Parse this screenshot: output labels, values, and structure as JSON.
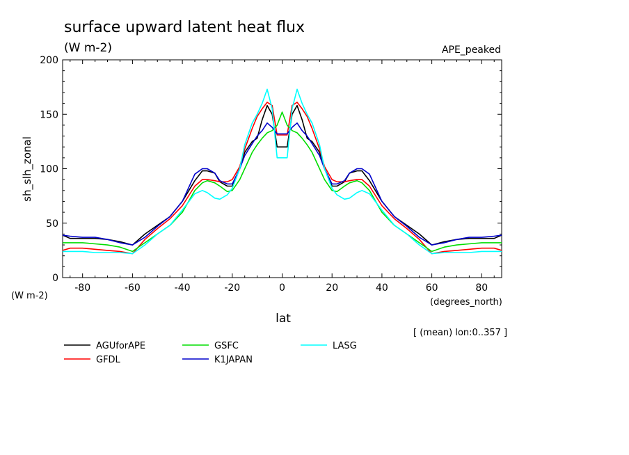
{
  "chart_data": {
    "type": "line",
    "title": "surface upward latent heat flux",
    "subtitle": "(W m-2)",
    "tag": "APE_peaked",
    "ylabel": "sh_slh_zonal",
    "yunit": "(W m-2)",
    "xlabel": "lat",
    "xunit": "(degrees_north)",
    "footnote": "[ (mean) lon:0..357 ]",
    "xlim": [
      -88,
      88
    ],
    "ylim": [
      0,
      200
    ],
    "xticks": [
      -80,
      -60,
      -40,
      -20,
      0,
      20,
      40,
      60,
      80
    ],
    "yticks": [
      0,
      50,
      100,
      150,
      200
    ],
    "legend_position": "bottom",
    "series": [
      {
        "name": "AGUforAPE",
        "color": "#000000",
        "x": [
          -88,
          -85,
          -80,
          -75,
          -70,
          -65,
          -60,
          -55,
          -50,
          -45,
          -40,
          -35,
          -32,
          -30,
          -27,
          -25,
          -22,
          -20,
          -17,
          -15,
          -12,
          -10,
          -8,
          -6,
          -4,
          -2,
          0,
          2,
          4,
          6,
          8,
          10,
          12,
          15,
          17,
          20,
          22,
          25,
          27,
          30,
          32,
          35,
          40,
          45,
          50,
          55,
          60,
          65,
          70,
          75,
          80,
          85,
          88
        ],
        "y": [
          39,
          36,
          36,
          36,
          35,
          33,
          30,
          40,
          48,
          56,
          70,
          89,
          98,
          98,
          96,
          88,
          84,
          84,
          100,
          115,
          125,
          128,
          145,
          158,
          150,
          120,
          120,
          120,
          150,
          158,
          145,
          128,
          125,
          115,
          100,
          84,
          84,
          88,
          96,
          98,
          98,
          89,
          70,
          56,
          48,
          40,
          30,
          33,
          35,
          36,
          36,
          36,
          39
        ]
      },
      {
        "name": "GFDL",
        "color": "#ff0000",
        "x": [
          -88,
          -85,
          -80,
          -75,
          -70,
          -65,
          -60,
          -55,
          -50,
          -45,
          -40,
          -35,
          -32,
          -30,
          -27,
          -25,
          -22,
          -20,
          -17,
          -15,
          -12,
          -10,
          -8,
          -6,
          -4,
          -2,
          0,
          2,
          4,
          6,
          8,
          10,
          12,
          15,
          17,
          20,
          22,
          25,
          27,
          30,
          32,
          35,
          40,
          45,
          50,
          55,
          60,
          65,
          70,
          75,
          80,
          85,
          88
        ],
        "y": [
          25,
          27,
          27,
          26,
          25,
          24,
          22,
          35,
          45,
          54,
          66,
          84,
          90,
          90,
          89,
          88,
          88,
          90,
          102,
          118,
          137,
          148,
          155,
          161,
          158,
          131,
          131,
          131,
          158,
          161,
          155,
          148,
          137,
          118,
          102,
          90,
          88,
          88,
          89,
          90,
          90,
          84,
          66,
          54,
          45,
          35,
          22,
          24,
          25,
          26,
          27,
          27,
          25
        ]
      },
      {
        "name": "GSFC",
        "color": "#00dd00",
        "x": [
          -88,
          -85,
          -80,
          -75,
          -70,
          -65,
          -60,
          -55,
          -50,
          -45,
          -40,
          -35,
          -32,
          -30,
          -27,
          -25,
          -22,
          -20,
          -17,
          -15,
          -12,
          -10,
          -8,
          -6,
          -4,
          -2,
          0,
          2,
          4,
          6,
          8,
          10,
          12,
          15,
          17,
          20,
          22,
          25,
          27,
          30,
          32,
          35,
          40,
          45,
          50,
          55,
          60,
          65,
          70,
          75,
          80,
          85,
          88
        ],
        "y": [
          32,
          32,
          32,
          31,
          30,
          28,
          24,
          32,
          40,
          48,
          60,
          80,
          87,
          89,
          87,
          84,
          79,
          80,
          90,
          100,
          115,
          122,
          128,
          133,
          135,
          140,
          152,
          140,
          135,
          133,
          128,
          122,
          115,
          100,
          90,
          80,
          79,
          84,
          87,
          89,
          87,
          80,
          60,
          48,
          40,
          32,
          24,
          28,
          30,
          31,
          32,
          32,
          32
        ]
      },
      {
        "name": "K1JAPAN",
        "color": "#0000cc",
        "x": [
          -88,
          -85,
          -80,
          -75,
          -70,
          -65,
          -60,
          -55,
          -50,
          -45,
          -40,
          -35,
          -32,
          -30,
          -27,
          -25,
          -22,
          -20,
          -17,
          -15,
          -12,
          -10,
          -8,
          -6,
          -4,
          -2,
          0,
          2,
          4,
          6,
          8,
          10,
          12,
          15,
          17,
          20,
          22,
          25,
          27,
          30,
          32,
          35,
          40,
          45,
          50,
          55,
          60,
          65,
          70,
          75,
          80,
          85,
          88
        ],
        "y": [
          39,
          38,
          37,
          37,
          35,
          32,
          30,
          37,
          47,
          56,
          70,
          95,
          100,
          100,
          96,
          89,
          86,
          86,
          100,
          112,
          123,
          130,
          135,
          142,
          138,
          132,
          132,
          132,
          138,
          142,
          135,
          130,
          123,
          112,
          100,
          86,
          86,
          89,
          96,
          100,
          100,
          95,
          70,
          56,
          47,
          37,
          30,
          32,
          35,
          37,
          37,
          38,
          39
        ]
      },
      {
        "name": "LASG",
        "color": "#00ffff",
        "x": [
          -88,
          -85,
          -80,
          -75,
          -70,
          -65,
          -60,
          -55,
          -50,
          -45,
          -40,
          -35,
          -32,
          -30,
          -27,
          -25,
          -22,
          -20,
          -17,
          -15,
          -12,
          -10,
          -8,
          -6,
          -4,
          -2,
          0,
          2,
          4,
          6,
          8,
          10,
          12,
          15,
          17,
          20,
          22,
          25,
          27,
          30,
          32,
          35,
          40,
          45,
          50,
          55,
          60,
          65,
          70,
          75,
          80,
          85,
          88
        ],
        "y": [
          24,
          24,
          24,
          23,
          23,
          23,
          22,
          30,
          40,
          48,
          62,
          77,
          80,
          78,
          73,
          72,
          76,
          82,
          100,
          122,
          142,
          150,
          160,
          173,
          155,
          110,
          110,
          110,
          155,
          173,
          160,
          150,
          142,
          122,
          100,
          82,
          76,
          72,
          73,
          78,
          80,
          77,
          62,
          48,
          40,
          30,
          22,
          23,
          23,
          23,
          24,
          24,
          24
        ]
      }
    ]
  }
}
